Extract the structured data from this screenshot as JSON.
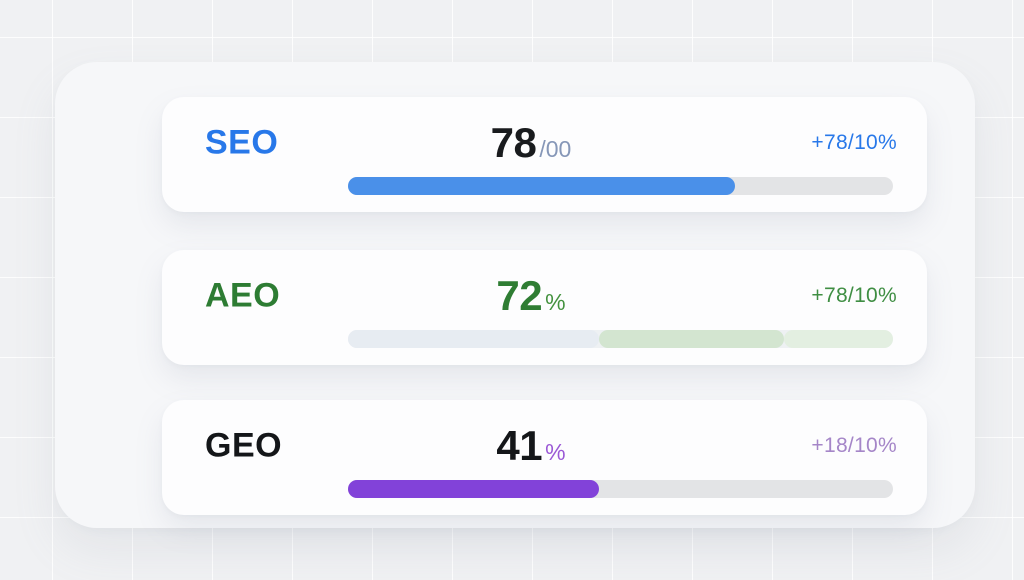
{
  "page": {
    "background_color": "#f0f1f3",
    "panel_color": "#f6f7f9",
    "card_color": "#fdfdfe",
    "track_color": "#e3e4e6"
  },
  "chart_data": {
    "type": "bar",
    "title": "",
    "categories": [
      "SEO",
      "AEO",
      "GEO"
    ],
    "values": [
      78,
      72,
      41
    ],
    "value_labels": [
      "78/00",
      "72 %",
      "41 %"
    ],
    "deltas": [
      "+78/10%",
      "+78/10%",
      "+18/10%"
    ],
    "bar_fill_percent": [
      71,
      80,
      46
    ],
    "ylim": [
      0,
      100
    ],
    "orientation": "horizontal",
    "accent_colors": [
      "#4a90e9",
      "#d3e5d0",
      "#8242d9"
    ]
  },
  "cards": [
    {
      "title": "SEO",
      "score_value": "78",
      "score_suffix": "/00",
      "delta": "+78/10%",
      "colors": {
        "title": "#2878e9",
        "score": "#191b1e",
        "suffix": "#8697b8",
        "delta": "#2878e9",
        "track": "#e3e4e6"
      },
      "bar_segments": [
        {
          "name": "seo-progress-fill",
          "width_percent": 71,
          "color": "#4a90e9"
        }
      ]
    },
    {
      "title": "AEO",
      "score_value": "72",
      "score_suffix": "%",
      "delta": "+78/10%",
      "colors": {
        "title": "#2d7c33",
        "score": "#2f7d33",
        "suffix": "#44923f",
        "delta": "#3f8e43",
        "track": "#eef1f3"
      },
      "bar_segments": [
        {
          "name": "aeo-progress-segment-1",
          "width_percent": 46,
          "color": "#e7ecf2"
        },
        {
          "name": "aeo-progress-segment-2",
          "width_percent": 34,
          "color": "#d3e5d0"
        },
        {
          "name": "aeo-progress-segment-3",
          "width_percent": 20,
          "color": "#e3efe1"
        }
      ]
    },
    {
      "title": "GEO",
      "score_value": "41",
      "score_suffix": "%",
      "delta": "+18/10%",
      "colors": {
        "title": "#141619",
        "score": "#141619",
        "suffix": "#9b59d6",
        "delta": "#a586c8",
        "track": "#e3e4e6"
      },
      "bar_segments": [
        {
          "name": "geo-progress-fill",
          "width_percent": 46,
          "color": "#8242d9"
        }
      ]
    }
  ]
}
